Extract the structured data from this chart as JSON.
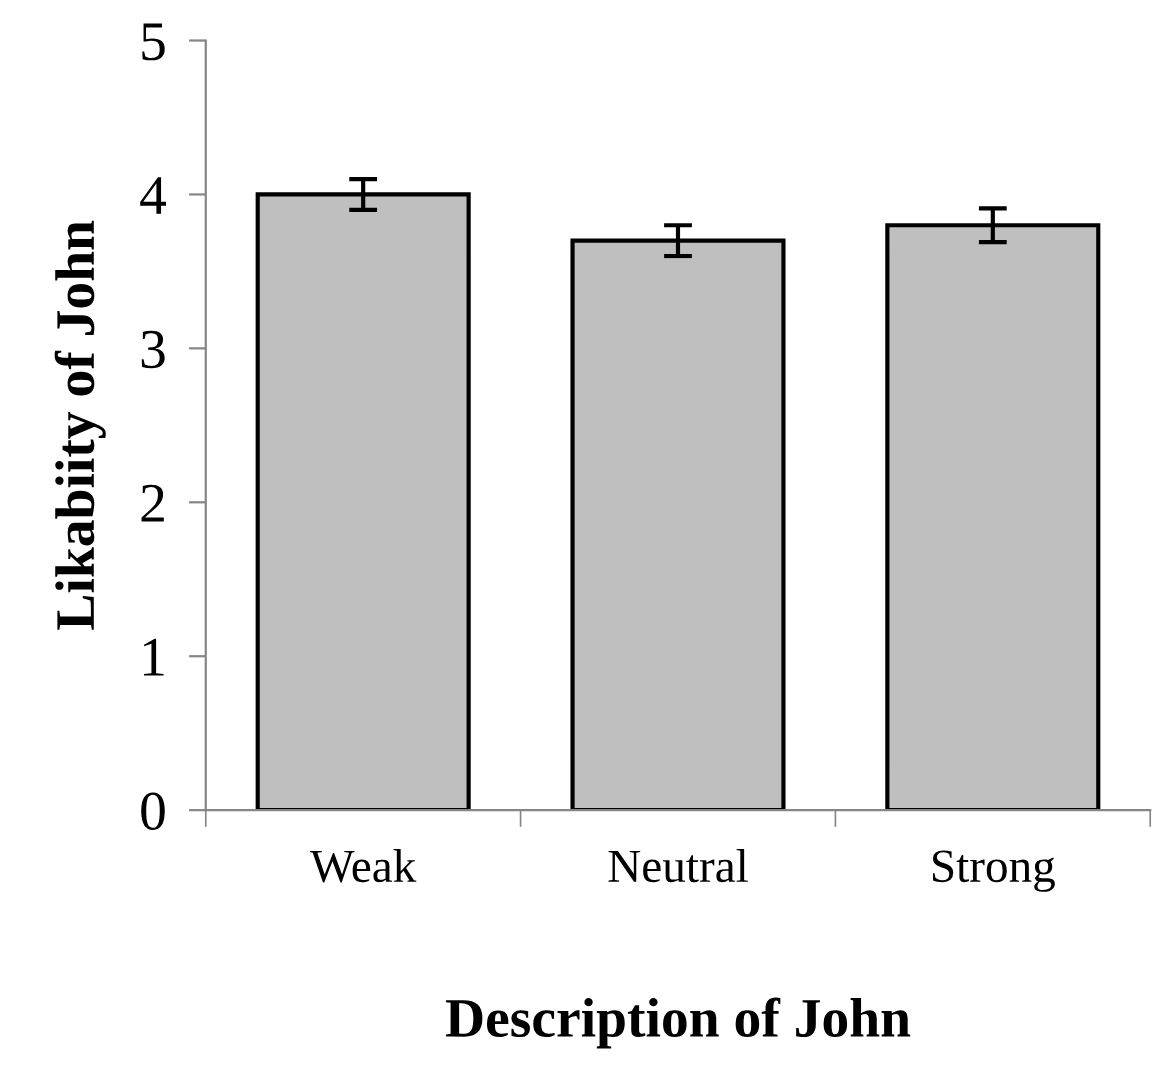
{
  "chart_data": {
    "type": "bar",
    "xlabel": "Description of John",
    "ylabel": "Likabiity of John",
    "categories": [
      "Weak",
      "Neutral",
      "Strong"
    ],
    "values": [
      4.0,
      3.7,
      3.8
    ],
    "errors": [
      0.1,
      0.1,
      0.11
    ],
    "color": "#bfbfbf",
    "ylim": [
      0,
      5
    ],
    "yticks": [
      0,
      1,
      2,
      3,
      4,
      5
    ],
    "grid": false,
    "legend": false
  }
}
